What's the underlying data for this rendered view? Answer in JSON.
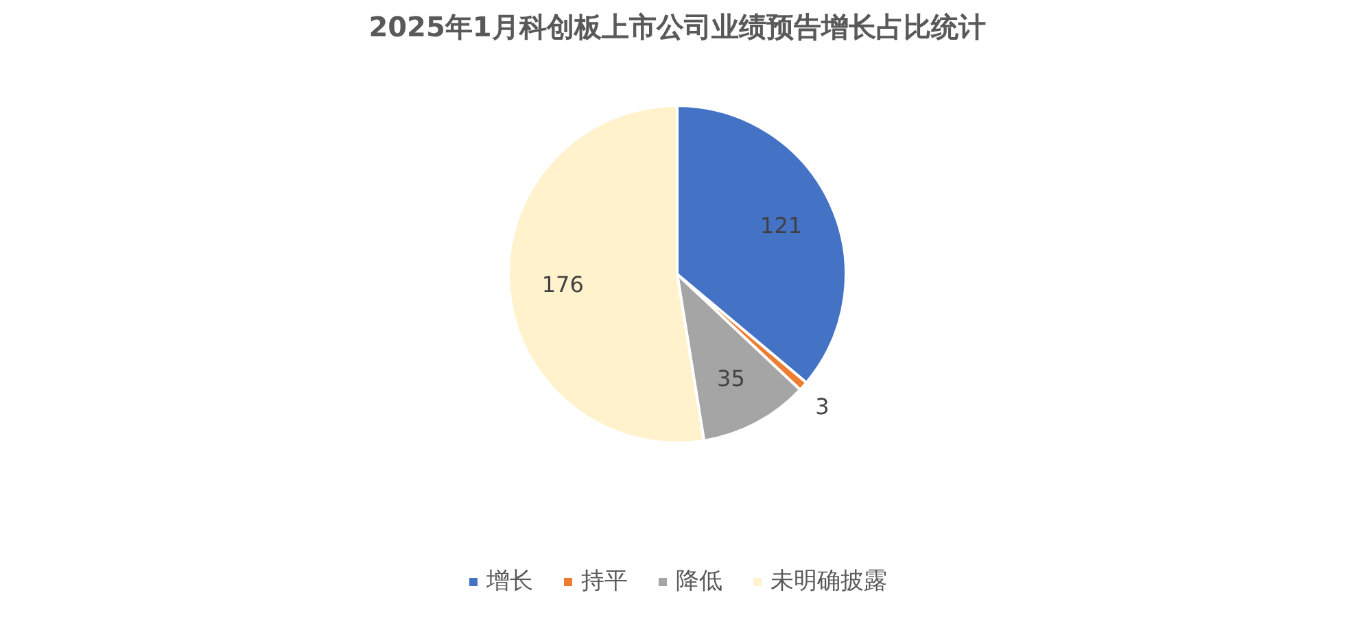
{
  "chart_data": {
    "type": "pie",
    "title": "2025年1月科创板上市公司业绩预告增长占比统计",
    "categories": [
      "增长",
      "持平",
      "降低",
      "未明确披露"
    ],
    "values": [
      121,
      3,
      35,
      176
    ],
    "colors": [
      "#4472c4",
      "#ed7d31",
      "#a5a5a5",
      "#fff2cc"
    ],
    "data_labels": true,
    "legend": "bottom"
  }
}
